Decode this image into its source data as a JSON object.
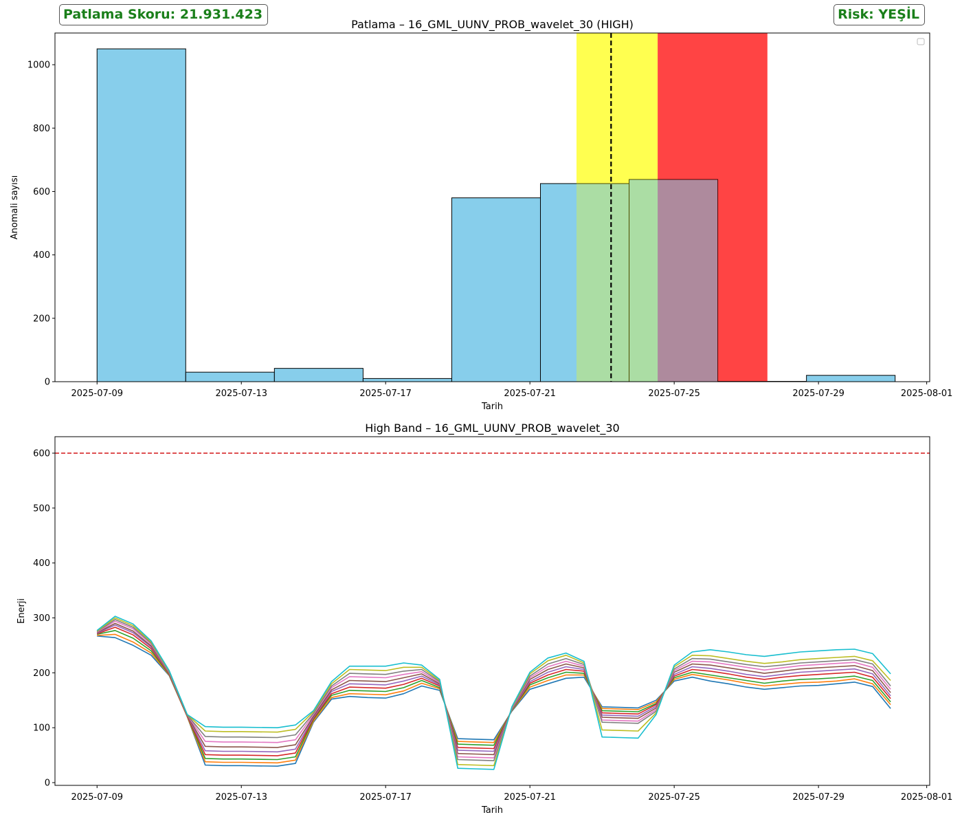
{
  "badges": {
    "score": "Patlama Skoru: 21.931.423",
    "risk": "Risk: YEŞİL",
    "color": "#1a7f1a"
  },
  "chart_data": [
    {
      "type": "bar",
      "title": "Patlama – 16_GML_UUNV_PROB_wavelet_30 (HIGH)",
      "xlabel": "Tarih",
      "ylabel": "Anomali sayısı",
      "ylim": [
        0,
        1100
      ],
      "yticks": [
        0,
        200,
        400,
        600,
        800,
        1000
      ],
      "xlim": [
        "2025-07-07T20:00",
        "2025-08-01T02:00"
      ],
      "xticks": [
        "2025-07-09",
        "2025-07-13",
        "2025-07-17",
        "2025-07-21",
        "2025-07-25",
        "2025-07-29",
        "2025-08-01"
      ],
      "bar_color": "#87ceeb",
      "bins": [
        {
          "start": "2025-07-09T00:00",
          "end": "2025-07-11T11:00",
          "value": 1050
        },
        {
          "start": "2025-07-11T11:00",
          "end": "2025-07-13T22:00",
          "value": 30
        },
        {
          "start": "2025-07-13T22:00",
          "end": "2025-07-16T09:00",
          "value": 42
        },
        {
          "start": "2025-07-16T09:00",
          "end": "2025-07-18T20:00",
          "value": 10
        },
        {
          "start": "2025-07-18T20:00",
          "end": "2025-07-21T07:00",
          "value": 580
        },
        {
          "start": "2025-07-21T07:00",
          "end": "2025-07-23T18:00",
          "value": 625
        },
        {
          "start": "2025-07-23T18:00",
          "end": "2025-07-26T05:00",
          "value": 638
        },
        {
          "start": "2025-07-26T05:00",
          "end": "2025-07-28T16:00",
          "value": 1
        },
        {
          "start": "2025-07-28T16:00",
          "end": "2025-07-31T03:00",
          "value": 20
        }
      ],
      "spans": [
        {
          "start": "2025-07-22T07:00",
          "end": "2025-07-24T13:00",
          "color": "#ffff00",
          "alpha": 0.55
        },
        {
          "start": "2025-07-24T13:00",
          "end": "2025-07-27T14:00",
          "color": "#ff0000",
          "alpha": 0.6
        }
      ],
      "vline": {
        "x": "2025-07-23T06:00",
        "style": "dashed",
        "color": "#000000"
      },
      "legend": "top-right (empty)"
    },
    {
      "type": "line",
      "title": "High Band – 16_GML_UUNV_PROB_wavelet_30",
      "xlabel": "Tarih",
      "ylabel": "Enerji",
      "ylim": [
        -5,
        630
      ],
      "yticks": [
        0,
        100,
        200,
        300,
        400,
        500,
        600
      ],
      "xlim": [
        "2025-07-07T20:00",
        "2025-08-01T02:00"
      ],
      "xticks": [
        "2025-07-09",
        "2025-07-13",
        "2025-07-17",
        "2025-07-21",
        "2025-07-25",
        "2025-07-29",
        "2025-08-01"
      ],
      "threshold": {
        "y": 600,
        "color": "#d62728",
        "style": "dashed"
      },
      "x": [
        "2025-07-09T00:00",
        "2025-07-09T12:00",
        "2025-07-10T00:00",
        "2025-07-10T12:00",
        "2025-07-11T00:00",
        "2025-07-11T12:00",
        "2025-07-12T00:00",
        "2025-07-12T12:00",
        "2025-07-13T00:00",
        "2025-07-14T00:00",
        "2025-07-14T12:00",
        "2025-07-15T00:00",
        "2025-07-15T12:00",
        "2025-07-16T00:00",
        "2025-07-16T12:00",
        "2025-07-17T00:00",
        "2025-07-17T12:00",
        "2025-07-18T00:00",
        "2025-07-18T12:00",
        "2025-07-19T00:00",
        "2025-07-19T12:00",
        "2025-07-20T00:00",
        "2025-07-20T12:00",
        "2025-07-21T00:00",
        "2025-07-21T12:00",
        "2025-07-22T00:00",
        "2025-07-22T12:00",
        "2025-07-23T00:00",
        "2025-07-23T12:00",
        "2025-07-24T00:00",
        "2025-07-24T12:00",
        "2025-07-25T00:00",
        "2025-07-25T12:00",
        "2025-07-26T00:00",
        "2025-07-26T12:00",
        "2025-07-27T00:00",
        "2025-07-27T12:00",
        "2025-07-28T00:00",
        "2025-07-28T12:00",
        "2025-07-29T00:00",
        "2025-07-29T12:00",
        "2025-07-30T00:00",
        "2025-07-30T12:00",
        "2025-07-31T00:00"
      ],
      "series": [
        {
          "color": "#1f77b4",
          "values": [
            267,
            264,
            250,
            232,
            195,
            120,
            32,
            31,
            31,
            30,
            35,
            110,
            152,
            157,
            155,
            154,
            162,
            176,
            168,
            80,
            79,
            78,
            130,
            170,
            180,
            190,
            192,
            138,
            137,
            136,
            150,
            185,
            192,
            185,
            180,
            174,
            170,
            173,
            176,
            177,
            180,
            183,
            175,
            135
          ]
        },
        {
          "color": "#ff7f0e",
          "values": [
            268,
            270,
            256,
            236,
            196,
            120,
            38,
            37,
            37,
            36,
            41,
            112,
            155,
            162,
            161,
            160,
            167,
            181,
            171,
            75,
            74,
            73,
            131,
            174,
            186,
            196,
            196,
            135,
            134,
            133,
            147,
            188,
            197,
            192,
            187,
            181,
            176,
            179,
            182,
            183,
            185,
            189,
            180,
            142
          ]
        },
        {
          "color": "#2ca02c",
          "values": [
            270,
            277,
            263,
            240,
            197,
            121,
            44,
            43,
            43,
            42,
            47,
            115,
            159,
            168,
            167,
            166,
            173,
            186,
            173,
            70,
            69,
            68,
            132,
            178,
            191,
            201,
            199,
            131,
            130,
            129,
            144,
            191,
            201,
            196,
            191,
            186,
            181,
            185,
            188,
            189,
            191,
            194,
            186,
            147
          ]
        },
        {
          "color": "#d62728",
          "values": [
            271,
            283,
            269,
            244,
            198,
            121,
            51,
            50,
            50,
            49,
            54,
            117,
            162,
            174,
            173,
            172,
            179,
            190,
            176,
            64,
            63,
            62,
            133,
            181,
            196,
            206,
            203,
            127,
            126,
            125,
            142,
            194,
            206,
            203,
            198,
            192,
            188,
            192,
            195,
            197,
            199,
            201,
            192,
            153
          ]
        },
        {
          "color": "#9467bd",
          "values": [
            272,
            287,
            273,
            247,
            199,
            122,
            58,
            57,
            57,
            56,
            61,
            119,
            166,
            180,
            179,
            178,
            185,
            194,
            178,
            59,
            58,
            57,
            133,
            184,
            201,
            211,
            206,
            123,
            122,
            121,
            139,
            197,
            211,
            208,
            203,
            197,
            193,
            197,
            201,
            203,
            205,
            207,
            198,
            158
          ]
        },
        {
          "color": "#8c564b",
          "values": [
            273,
            290,
            276,
            249,
            200,
            122,
            66,
            65,
            65,
            64,
            69,
            121,
            169,
            186,
            185,
            184,
            191,
            198,
            180,
            53,
            52,
            51,
            134,
            188,
            206,
            216,
            209,
            119,
            118,
            117,
            136,
            201,
            216,
            214,
            209,
            204,
            199,
            203,
            207,
            209,
            211,
            213,
            204,
            164
          ]
        },
        {
          "color": "#e377c2",
          "values": [
            274,
            294,
            280,
            252,
            201,
            123,
            75,
            74,
            74,
            73,
            78,
            124,
            173,
            193,
            192,
            191,
            197,
            202,
            182,
            47,
            46,
            45,
            135,
            191,
            211,
            221,
            212,
            114,
            113,
            112,
            133,
            204,
            221,
            220,
            215,
            210,
            205,
            209,
            213,
            215,
            217,
            219,
            210,
            170
          ]
        },
        {
          "color": "#7f7f7f",
          "values": [
            275,
            297,
            283,
            254,
            202,
            123,
            84,
            83,
            83,
            82,
            87,
            126,
            176,
            199,
            198,
            197,
            203,
            206,
            184,
            42,
            41,
            40,
            136,
            194,
            216,
            226,
            215,
            110,
            109,
            108,
            130,
            207,
            226,
            225,
            220,
            215,
            211,
            214,
            218,
            220,
            222,
            224,
            216,
            176
          ]
        },
        {
          "color": "#bcbd22",
          "values": [
            276,
            300,
            286,
            256,
            203,
            124,
            94,
            93,
            93,
            92,
            97,
            129,
            180,
            206,
            205,
            204,
            210,
            210,
            186,
            33,
            32,
            31,
            137,
            198,
            222,
            232,
            218,
            96,
            95,
            94,
            127,
            211,
            232,
            231,
            226,
            221,
            217,
            220,
            224,
            226,
            228,
            230,
            222,
            186
          ]
        },
        {
          "color": "#17becf",
          "values": [
            277,
            303,
            289,
            258,
            204,
            124,
            102,
            101,
            101,
            100,
            105,
            131,
            184,
            212,
            212,
            212,
            218,
            214,
            188,
            26,
            25,
            24,
            138,
            201,
            227,
            236,
            221,
            83,
            82,
            81,
            124,
            214,
            238,
            242,
            238,
            233,
            230,
            234,
            238,
            240,
            242,
            243,
            235,
            198
          ]
        }
      ]
    }
  ]
}
